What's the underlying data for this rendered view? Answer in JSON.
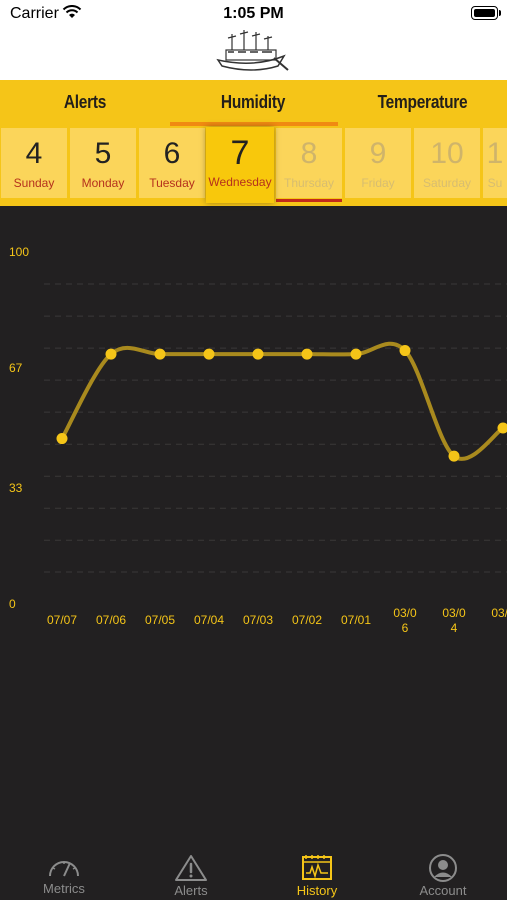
{
  "status_bar": {
    "carrier": "Carrier",
    "time": "1:05 PM"
  },
  "tabs": [
    {
      "label": "Alerts"
    },
    {
      "label": "Humidity",
      "selected": true
    },
    {
      "label": "Temperature"
    }
  ],
  "days": [
    {
      "number": "4",
      "name": "Sunday",
      "state": "past"
    },
    {
      "number": "5",
      "name": "Monday",
      "state": "past"
    },
    {
      "number": "6",
      "name": "Tuesday",
      "state": "past"
    },
    {
      "number": "7",
      "name": "Wednesday",
      "state": "selected"
    },
    {
      "number": "8",
      "name": "Thursday",
      "state": "future"
    },
    {
      "number": "9",
      "name": "Friday",
      "state": "future"
    },
    {
      "number": "10",
      "name": "Saturday",
      "state": "future"
    },
    {
      "number": "1",
      "name": "Su",
      "state": "future"
    }
  ],
  "chart_data": {
    "type": "line",
    "y_ticks": [
      "100",
      "67",
      "33",
      "0"
    ],
    "ylim": [
      0,
      100
    ],
    "x": [
      "07/07",
      "07/06",
      "07/05",
      "07/04",
      "07/03",
      "07/02",
      "07/01",
      "03/06",
      "03/04",
      "03/0"
    ],
    "values": [
      47,
      71,
      71,
      71,
      71,
      71,
      71,
      72,
      42,
      50
    ],
    "grid": "dashed horizontal",
    "colors": {
      "line": "#a98a1e",
      "point": "#f5c518"
    }
  },
  "tabbar": [
    {
      "label": "Metrics",
      "icon": "gauge-icon",
      "active": false
    },
    {
      "label": "Alerts",
      "icon": "warning-triangle-icon",
      "active": false
    },
    {
      "label": "History",
      "icon": "history-chart-icon",
      "active": true
    },
    {
      "label": "Account",
      "icon": "user-circle-icon",
      "active": false
    }
  ],
  "colors": {
    "accent": "#f5c518",
    "background": "#222021",
    "marker": "#c32a1a",
    "tab_underline": "#f08a12"
  }
}
